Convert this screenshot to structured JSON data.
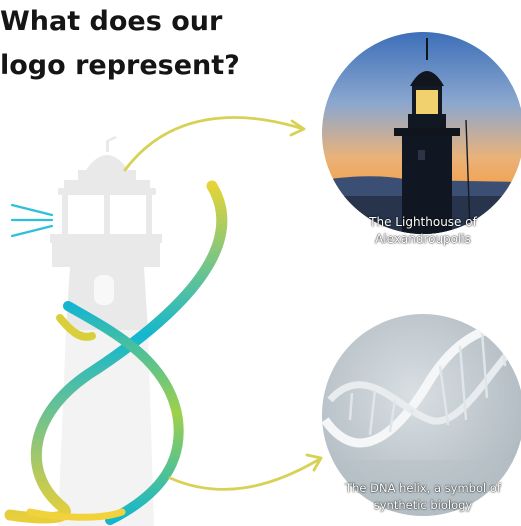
{
  "heading": {
    "line1": "What does our",
    "line2": "logo represent?"
  },
  "captions": {
    "lighthouse": {
      "line1": "The Lighthouse of",
      "line2": "Alexandroupolis"
    },
    "dna": {
      "line1": "The DNA helix, a symbol of",
      "line2": "synthetic biology"
    }
  },
  "colors": {
    "gradient_yellow": "#e6d23a",
    "gradient_green": "#7fcc5a",
    "gradient_teal": "#12b8d0",
    "lighthouse_tower": "#e9e9e9",
    "arrow": "#d7d256"
  }
}
